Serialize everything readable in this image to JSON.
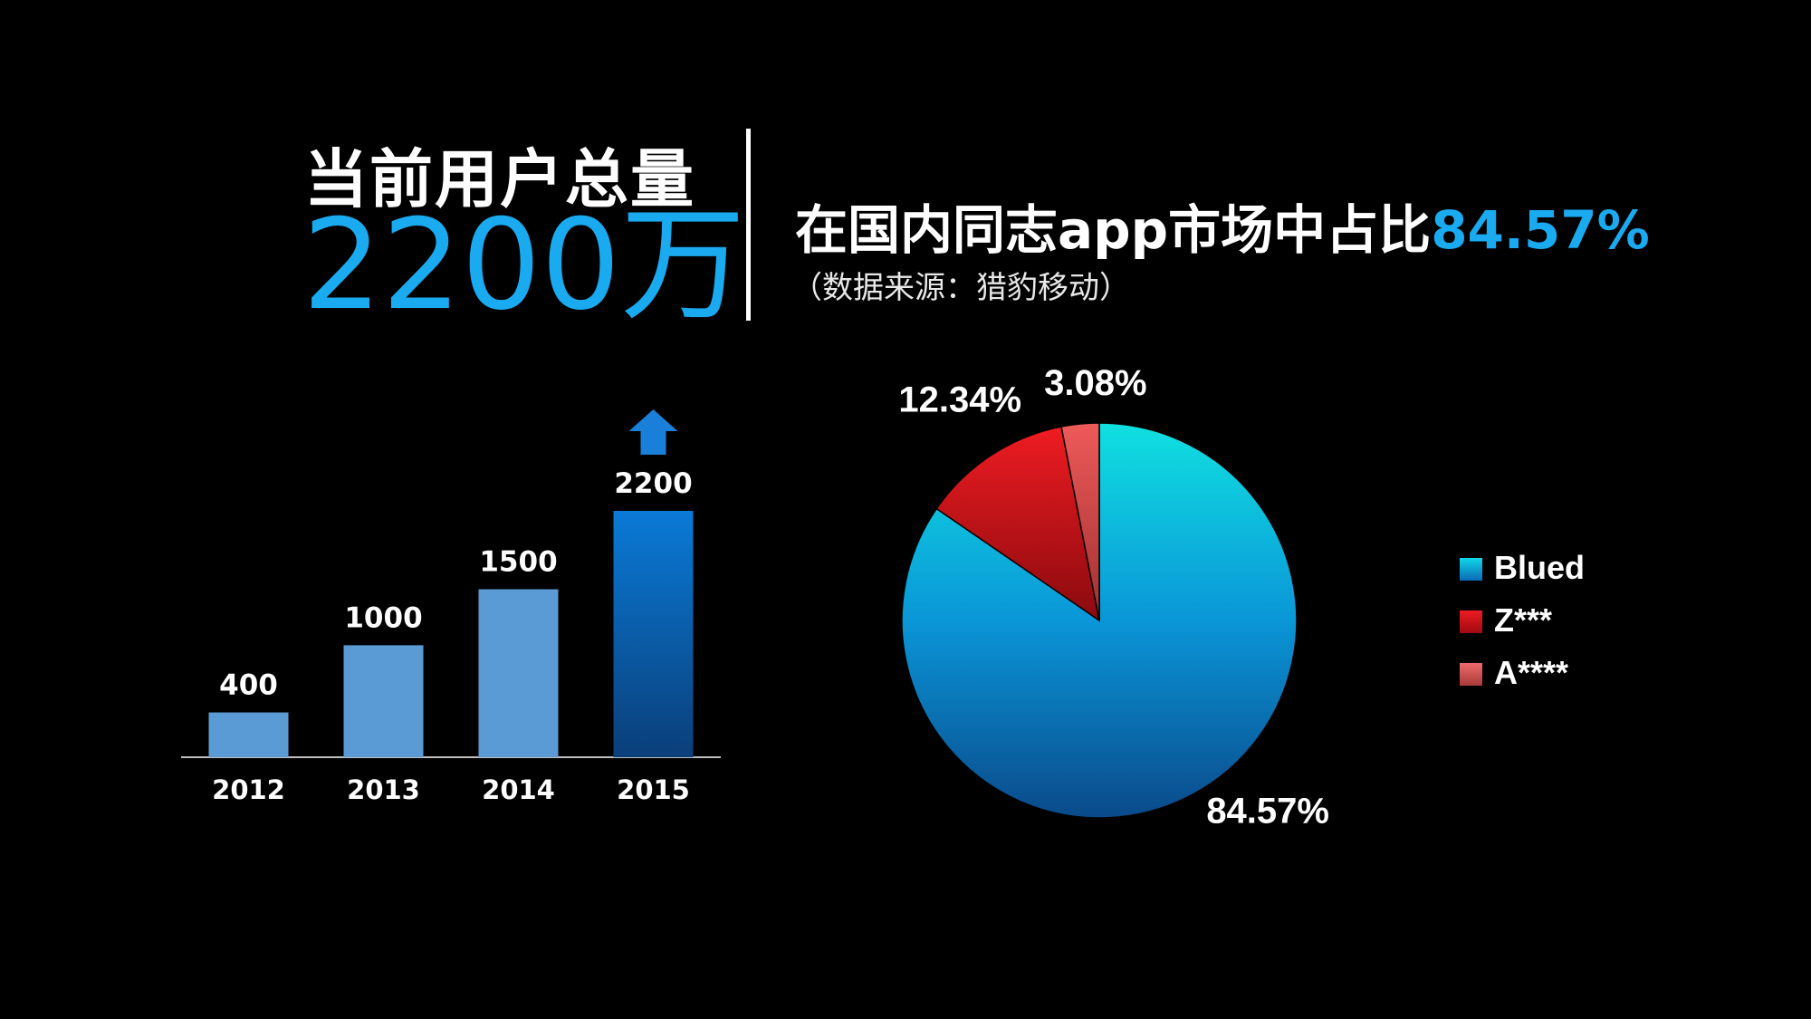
{
  "header": {
    "users_label": "当前用户总量",
    "users_value": "2200万",
    "share_text": "在国内同志app市场中占比",
    "share_value": "84.57%",
    "source_note": "（数据来源：猎豹移动）"
  },
  "chart_data": [
    {
      "type": "bar",
      "categories": [
        "2012",
        "2013",
        "2014",
        "2015"
      ],
      "values": [
        400,
        1000,
        1500,
        2200
      ],
      "data_labels": [
        "400",
        "1000",
        "1500",
        "2200"
      ],
      "colors": [
        "#5b9bd5",
        "#5b9bd5",
        "#5b9bd5",
        "#0a78d0"
      ],
      "highlight_icon": "up-arrow-icon",
      "ylim": [
        0,
        2200
      ],
      "grid": false
    },
    {
      "type": "pie",
      "categories": [
        "Blued",
        "Z***",
        "A****"
      ],
      "values": [
        84.57,
        12.34,
        3.08
      ],
      "data_labels": [
        "84.57%",
        "12.34%",
        "3.08%"
      ],
      "colors": [
        "#0aa0e0",
        "#d0141a",
        "#e05050"
      ],
      "legend_position": "right"
    }
  ]
}
